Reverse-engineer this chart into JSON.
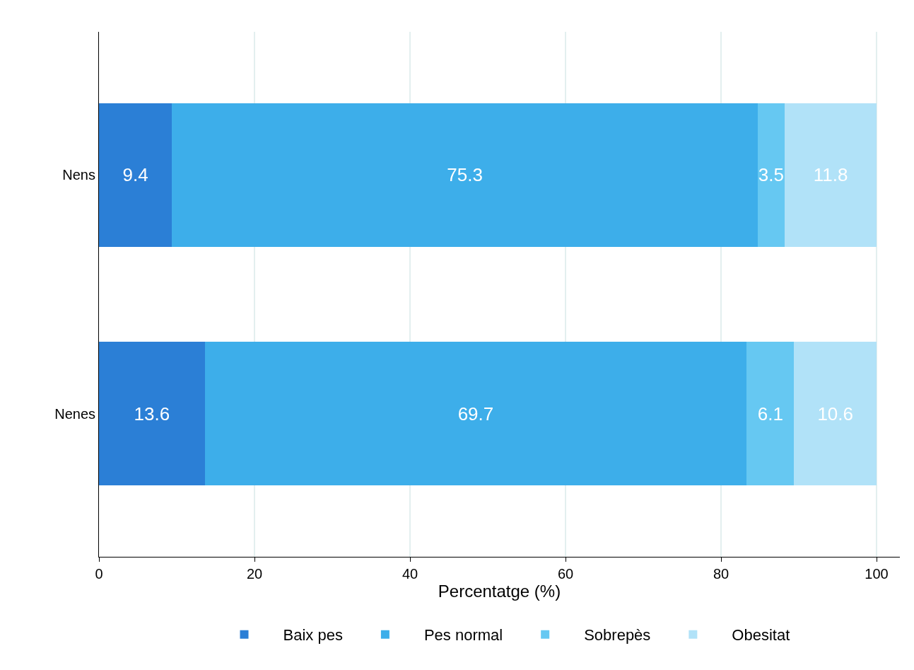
{
  "chart_data": {
    "type": "bar",
    "orientation": "horizontal",
    "stacked": true,
    "xlabel": "Percentatge (%)",
    "categories": [
      "Nens",
      "Nenes"
    ],
    "series": [
      {
        "name": "Baix pes",
        "color": "#2b7fd6",
        "values": [
          9.4,
          13.6
        ]
      },
      {
        "name": "Pes normal",
        "color": "#3daeea",
        "values": [
          75.3,
          69.7
        ]
      },
      {
        "name": "Sobrepès",
        "color": "#66c8f2",
        "values": [
          3.5,
          6.1
        ]
      },
      {
        "name": "Obesitat",
        "color": "#b1e2f8",
        "values": [
          11.8,
          10.6
        ]
      }
    ],
    "xlim": [
      0,
      103
    ],
    "xticks": [
      0,
      20,
      40,
      60,
      80,
      100
    ],
    "grid": "x",
    "legend": "bottom",
    "data_labels": true
  }
}
